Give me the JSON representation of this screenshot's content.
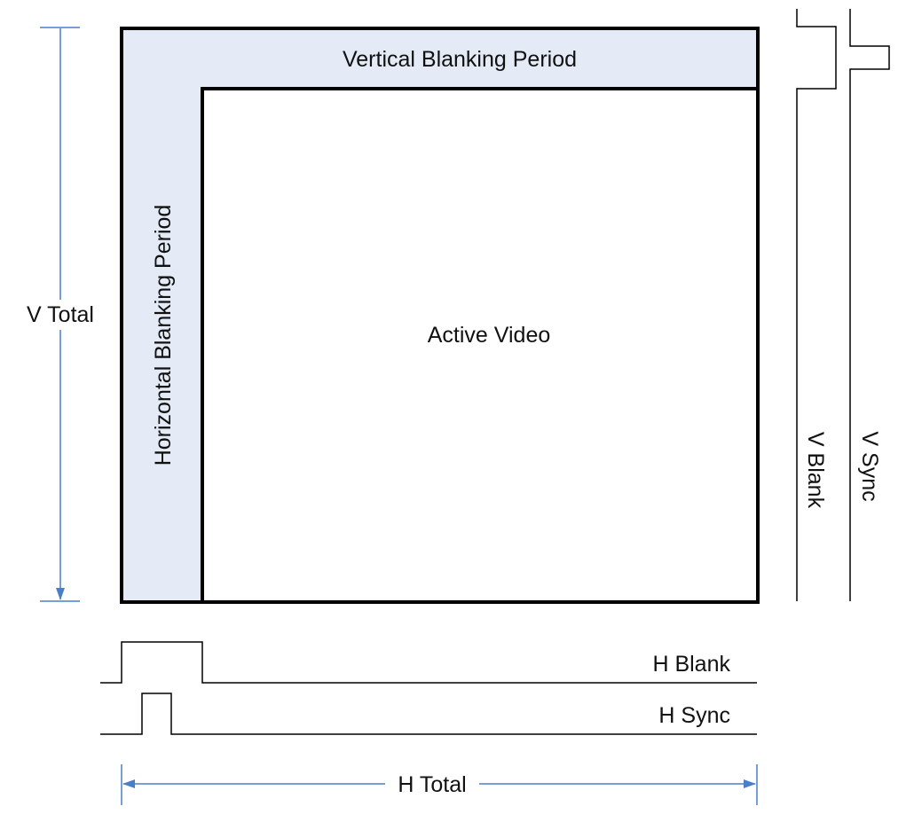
{
  "labels": {
    "vertical_blanking": "Vertical Blanking Period",
    "horizontal_blanking": "Horizontal Blanking Period",
    "active_video": "Active Video",
    "v_total": "V Total",
    "h_total": "H Total",
    "h_blank": "H Blank",
    "h_sync": "H Sync",
    "v_blank": "V Blank",
    "v_sync": "V Sync"
  },
  "colors": {
    "blanking_fill": "#e4ebf6",
    "frame_stroke": "#000000",
    "dimension_arrow": "#4a7ec8",
    "signal_line": "#000000"
  }
}
